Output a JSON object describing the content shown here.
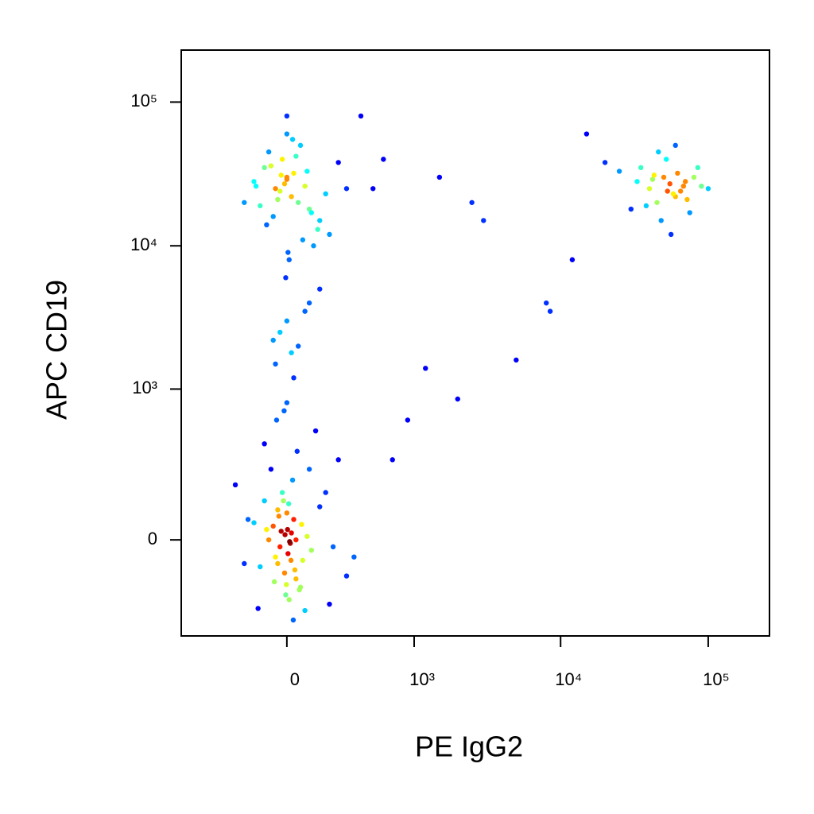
{
  "chart_data": {
    "type": "scatter",
    "scale": "biexponential",
    "x_label": "PE  IgG2",
    "y_label": "APC  CD19",
    "xlim": [
      -700,
      260000
    ],
    "ylim": [
      -400,
      230000
    ],
    "xticks": [
      0,
      {
        "value": 1000,
        "label": "10³"
      },
      {
        "value": 10000,
        "label": "10⁴"
      },
      {
        "value": 100000,
        "label": "10⁵"
      }
    ],
    "yticks": [
      0,
      {
        "value": 1000,
        "label": "10³"
      },
      {
        "value": 10000,
        "label": "10⁴"
      },
      {
        "value": 100000,
        "label": "10⁵"
      }
    ],
    "color": "density",
    "x": [
      -50,
      20,
      -10,
      30,
      -80,
      60,
      0,
      -30,
      10,
      -60,
      90,
      -120,
      40,
      -20,
      5,
      -40,
      70,
      -90,
      15,
      25,
      -5,
      -15,
      35,
      -70,
      110,
      -150,
      150,
      -200,
      200,
      250,
      -250,
      300,
      -100,
      80,
      -35,
      45,
      55,
      -45,
      0,
      12,
      -8,
      18,
      -25,
      65,
      -55,
      130,
      -130,
      180,
      220,
      -180,
      28,
      -12,
      8,
      -2,
      3,
      40,
      -40,
      100,
      -100,
      350,
      -50,
      0,
      50,
      -100,
      100,
      -20,
      20,
      150,
      -150,
      200,
      -80,
      80,
      0,
      30,
      -30,
      120,
      -120,
      250,
      60,
      -60,
      10,
      -10,
      90,
      -90,
      180,
      40,
      -40,
      0,
      70,
      -70,
      300,
      -200,
      110,
      -5,
      5,
      25,
      -25,
      140,
      -140,
      0,
      0,
      50,
      -50,
      100,
      30,
      -30,
      80,
      20,
      -60,
      150,
      40000,
      50000,
      60000,
      70000,
      35000,
      45000,
      55000,
      65000,
      80000,
      30000,
      90000,
      25000,
      52000,
      48000,
      58000,
      62000,
      42000,
      72000,
      38000,
      100000,
      20000,
      56000,
      46000,
      68000,
      33000,
      75000,
      85000,
      53000,
      43000,
      60000,
      500,
      1500,
      3000,
      5000,
      8000,
      12000,
      2000,
      700,
      900,
      1200,
      400,
      600,
      15000,
      2500,
      8500
    ],
    "y": [
      -50,
      20,
      -100,
      60,
      0,
      -150,
      80,
      -20,
      -200,
      40,
      10,
      -80,
      -120,
      150,
      -40,
      90,
      -60,
      30,
      -10,
      200,
      -180,
      120,
      -90,
      250,
      -30,
      50,
      100,
      -70,
      -220,
      300,
      180,
      -110,
      400,
      -250,
      70,
      350,
      -160,
      600,
      800,
      -5,
      15,
      -60,
      25,
      45,
      -130,
      500,
      -240,
      150,
      -20,
      60,
      -300,
      700,
      110,
      -140,
      30,
      0,
      -70,
      250,
      120,
      -50,
      25000,
      30000,
      20000,
      35000,
      18000,
      40000,
      22000,
      15000,
      28000,
      12000,
      45000,
      26000,
      60000,
      32000,
      24000,
      10000,
      19000,
      38000,
      50000,
      16000,
      8000,
      27000,
      33000,
      14000,
      23000,
      42000,
      21000,
      29000,
      11000,
      36000,
      25000,
      20000,
      17000,
      6000,
      9000,
      55000,
      31000,
      13000,
      26000,
      80000,
      3000,
      2000,
      1500,
      4000,
      1200,
      2500,
      3500,
      1800,
      2200,
      5000,
      25000,
      30000,
      22000,
      28000,
      35000,
      20000,
      27000,
      24000,
      30000,
      18000,
      26000,
      33000,
      40000,
      15000,
      23000,
      32000,
      29000,
      21000,
      19000,
      25000,
      38000,
      12000,
      45000,
      26000,
      28000,
      17000,
      35000,
      24000,
      31000,
      50000,
      25000,
      30000,
      15000,
      1600,
      4000,
      8000,
      850,
      300,
      600,
      1400,
      80000,
      40000,
      60000,
      20000,
      3500
    ]
  }
}
